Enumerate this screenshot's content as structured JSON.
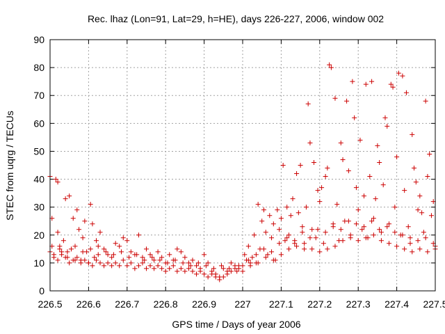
{
  "chart_data": {
    "type": "scatter",
    "title": "Rec. lhaz (Lon=91, Lat=29, h=HE), days 226-227, 2006, window 002",
    "xlabel": "GPS time / Days of year 2006",
    "ylabel": "STEC from uqrg / TECUs",
    "xlim": [
      226.5,
      227.5
    ],
    "ylim": [
      0,
      90
    ],
    "x_ticks": [
      "226.5",
      "226.6",
      "226.7",
      "226.8",
      "226.9",
      "227",
      "227.1",
      "227.2",
      "227.3",
      "227.4",
      "227.5"
    ],
    "y_ticks": [
      "0",
      "10",
      "20",
      "30",
      "40",
      "50",
      "60",
      "70",
      "80",
      "90"
    ],
    "grid": true,
    "marker": "plus",
    "color": "#cc0000",
    "series": [
      {
        "points": [
          [
            226.5,
            41
          ],
          [
            226.505,
            26
          ],
          [
            226.51,
            13
          ],
          [
            226.515,
            40
          ],
          [
            226.52,
            39
          ],
          [
            226.52,
            21
          ],
          [
            226.525,
            16
          ],
          [
            226.53,
            14
          ],
          [
            226.535,
            18
          ],
          [
            226.54,
            33
          ],
          [
            226.545,
            12
          ],
          [
            226.55,
            34
          ],
          [
            226.555,
            15
          ],
          [
            226.56,
            26
          ],
          [
            226.565,
            11
          ],
          [
            226.57,
            29
          ],
          [
            226.575,
            22
          ],
          [
            226.58,
            11
          ],
          [
            226.585,
            19
          ],
          [
            226.59,
            25
          ],
          [
            226.595,
            14
          ],
          [
            226.6,
            10
          ],
          [
            226.605,
            31
          ],
          [
            226.61,
            24
          ],
          [
            226.615,
            12
          ],
          [
            226.62,
            18
          ],
          [
            226.625,
            16
          ],
          [
            226.63,
            21
          ],
          [
            226.64,
            15
          ],
          [
            226.65,
            13
          ],
          [
            226.66,
            12
          ],
          [
            226.67,
            17
          ],
          [
            226.68,
            16
          ],
          [
            226.69,
            19
          ],
          [
            226.7,
            18
          ],
          [
            226.71,
            14
          ],
          [
            226.72,
            13
          ],
          [
            226.73,
            20
          ],
          [
            226.74,
            12
          ],
          [
            226.75,
            15
          ],
          [
            226.76,
            13
          ],
          [
            226.77,
            11
          ],
          [
            226.78,
            14
          ],
          [
            226.79,
            12
          ],
          [
            226.8,
            10
          ],
          [
            226.81,
            13
          ],
          [
            226.82,
            11
          ],
          [
            226.83,
            15
          ],
          [
            226.84,
            14
          ],
          [
            226.85,
            12
          ],
          [
            226.86,
            10
          ],
          [
            226.87,
            11
          ],
          [
            226.88,
            9
          ],
          [
            226.89,
            8
          ],
          [
            226.9,
            13
          ],
          [
            226.91,
            10
          ],
          [
            226.92,
            7
          ],
          [
            226.93,
            6
          ],
          [
            226.94,
            5
          ],
          [
            226.95,
            8
          ],
          [
            226.96,
            7
          ],
          [
            226.97,
            10
          ],
          [
            226.98,
            9
          ],
          [
            226.99,
            8
          ],
          [
            227.0,
            7
          ],
          [
            227.005,
            13
          ],
          [
            227.01,
            11
          ],
          [
            227.015,
            16
          ],
          [
            227.02,
            9
          ],
          [
            227.025,
            12
          ],
          [
            227.03,
            20
          ],
          [
            227.035,
            10
          ],
          [
            227.04,
            31
          ],
          [
            227.045,
            15
          ],
          [
            227.05,
            25
          ],
          [
            227.055,
            29
          ],
          [
            227.06,
            21
          ],
          [
            227.065,
            13
          ],
          [
            227.07,
            27
          ],
          [
            227.075,
            19
          ],
          [
            227.08,
            24
          ],
          [
            227.085,
            11
          ],
          [
            227.09,
            29
          ],
          [
            227.095,
            22
          ],
          [
            227.1,
            26
          ],
          [
            227.105,
            45
          ],
          [
            227.11,
            18
          ],
          [
            227.115,
            30
          ],
          [
            227.12,
            20
          ],
          [
            227.125,
            27
          ],
          [
            227.13,
            33
          ],
          [
            227.135,
            17
          ],
          [
            227.14,
            42
          ],
          [
            227.145,
            28
          ],
          [
            227.15,
            45
          ],
          [
            227.155,
            23
          ],
          [
            227.16,
            15
          ],
          [
            227.165,
            30
          ],
          [
            227.17,
            67
          ],
          [
            227.175,
            53
          ],
          [
            227.18,
            22
          ],
          [
            227.185,
            46
          ],
          [
            227.19,
            19
          ],
          [
            227.195,
            36
          ],
          [
            227.2,
            32
          ],
          [
            227.205,
            37
          ],
          [
            227.21,
            17
          ],
          [
            227.215,
            41
          ],
          [
            227.22,
            44
          ],
          [
            227.225,
            81
          ],
          [
            227.23,
            80
          ],
          [
            227.235,
            23
          ],
          [
            227.24,
            69
          ],
          [
            227.245,
            31
          ],
          [
            227.25,
            18
          ],
          [
            227.255,
            53
          ],
          [
            227.26,
            47
          ],
          [
            227.265,
            25
          ],
          [
            227.27,
            68
          ],
          [
            227.275,
            43
          ],
          [
            227.28,
            20
          ],
          [
            227.285,
            75
          ],
          [
            227.29,
            62
          ],
          [
            227.295,
            37
          ],
          [
            227.3,
            29
          ],
          [
            227.305,
            54
          ],
          [
            227.31,
            22
          ],
          [
            227.315,
            34
          ],
          [
            227.32,
            74
          ],
          [
            227.325,
            19
          ],
          [
            227.33,
            41
          ],
          [
            227.335,
            75
          ],
          [
            227.34,
            26
          ],
          [
            227.345,
            33
          ],
          [
            227.35,
            52
          ],
          [
            227.355,
            46
          ],
          [
            227.36,
            21
          ],
          [
            227.365,
            38
          ],
          [
            227.37,
            62
          ],
          [
            227.375,
            59
          ],
          [
            227.38,
            24
          ],
          [
            227.385,
            74
          ],
          [
            227.39,
            73
          ],
          [
            227.395,
            30
          ],
          [
            227.4,
            48
          ],
          [
            227.405,
            78
          ],
          [
            227.41,
            20
          ],
          [
            227.415,
            77
          ],
          [
            227.42,
            36
          ],
          [
            227.425,
            71
          ],
          [
            227.43,
            23
          ],
          [
            227.435,
            17
          ],
          [
            227.44,
            56
          ],
          [
            227.445,
            44
          ],
          [
            227.45,
            39
          ],
          [
            227.455,
            29
          ],
          [
            227.46,
            34
          ],
          [
            227.465,
            28
          ],
          [
            227.47,
            21
          ],
          [
            227.475,
            68
          ],
          [
            227.48,
            41
          ],
          [
            227.485,
            49
          ],
          [
            227.49,
            27
          ],
          [
            227.495,
            32
          ],
          [
            227.5,
            16
          ]
        ]
      },
      {
        "points": [
          [
            226.5,
            14
          ],
          [
            226.51,
            12
          ],
          [
            226.52,
            11
          ],
          [
            226.53,
            13
          ],
          [
            226.54,
            12
          ],
          [
            226.55,
            10
          ],
          [
            226.56,
            11
          ],
          [
            226.57,
            12
          ],
          [
            226.58,
            10
          ],
          [
            226.59,
            11
          ],
          [
            226.6,
            10
          ],
          [
            226.61,
            9
          ],
          [
            226.62,
            11
          ],
          [
            226.63,
            10
          ],
          [
            226.64,
            9
          ],
          [
            226.65,
            10
          ],
          [
            226.66,
            9
          ],
          [
            226.67,
            10
          ],
          [
            226.68,
            9
          ],
          [
            226.69,
            11
          ],
          [
            226.7,
            9
          ],
          [
            226.71,
            10
          ],
          [
            226.72,
            8
          ],
          [
            226.73,
            9
          ],
          [
            226.74,
            10
          ],
          [
            226.75,
            8
          ],
          [
            226.76,
            9
          ],
          [
            226.77,
            8
          ],
          [
            226.78,
            9
          ],
          [
            226.79,
            8
          ],
          [
            226.8,
            7
          ],
          [
            226.81,
            8
          ],
          [
            226.82,
            9
          ],
          [
            226.83,
            7
          ],
          [
            226.84,
            8
          ],
          [
            226.85,
            7
          ],
          [
            226.86,
            8
          ],
          [
            226.87,
            7
          ],
          [
            226.88,
            6
          ],
          [
            226.89,
            7
          ],
          [
            226.9,
            6
          ],
          [
            226.91,
            5
          ],
          [
            226.92,
            6
          ],
          [
            226.93,
            5
          ],
          [
            226.94,
            4
          ],
          [
            226.95,
            5
          ],
          [
            226.96,
            6
          ],
          [
            226.97,
            7
          ],
          [
            226.98,
            8
          ],
          [
            226.99,
            9
          ],
          [
            227.0,
            9
          ],
          [
            227.02,
            10
          ],
          [
            227.04,
            10
          ],
          [
            227.06,
            12
          ],
          [
            227.08,
            11
          ],
          [
            227.1,
            13
          ],
          [
            227.12,
            15
          ],
          [
            227.14,
            16
          ],
          [
            227.16,
            17
          ],
          [
            227.18,
            15
          ],
          [
            227.2,
            14
          ],
          [
            227.22,
            15
          ],
          [
            227.24,
            16
          ],
          [
            227.26,
            18
          ],
          [
            227.28,
            19
          ],
          [
            227.3,
            18
          ],
          [
            227.32,
            19
          ],
          [
            227.34,
            20
          ],
          [
            227.36,
            18
          ],
          [
            227.38,
            17
          ],
          [
            227.4,
            16
          ],
          [
            227.42,
            15
          ],
          [
            227.44,
            14
          ],
          [
            227.46,
            15
          ],
          [
            227.48,
            14
          ],
          [
            227.5,
            15
          ]
        ]
      },
      {
        "points": [
          [
            226.505,
            16
          ],
          [
            226.525,
            15
          ],
          [
            226.545,
            14
          ],
          [
            226.565,
            16
          ],
          [
            226.585,
            14
          ],
          [
            226.605,
            15
          ],
          [
            226.625,
            13
          ],
          [
            226.645,
            14
          ],
          [
            226.665,
            13
          ],
          [
            226.685,
            14
          ],
          [
            226.705,
            12
          ],
          [
            226.725,
            13
          ],
          [
            226.745,
            11
          ],
          [
            226.765,
            12
          ],
          [
            226.785,
            11
          ],
          [
            226.805,
            10
          ],
          [
            226.825,
            11
          ],
          [
            226.845,
            10
          ],
          [
            226.865,
            9
          ],
          [
            226.885,
            10
          ],
          [
            226.905,
            9
          ],
          [
            226.925,
            8
          ],
          [
            226.945,
            9
          ],
          [
            226.965,
            8
          ],
          [
            226.985,
            7
          ],
          [
            227.015,
            11
          ],
          [
            227.035,
            13
          ],
          [
            227.055,
            15
          ],
          [
            227.075,
            14
          ],
          [
            227.095,
            17
          ],
          [
            227.115,
            19
          ],
          [
            227.135,
            18
          ],
          [
            227.155,
            21
          ],
          [
            227.175,
            19
          ],
          [
            227.195,
            22
          ],
          [
            227.215,
            21
          ],
          [
            227.235,
            24
          ],
          [
            227.255,
            22
          ],
          [
            227.275,
            25
          ],
          [
            227.295,
            24
          ],
          [
            227.315,
            23
          ],
          [
            227.335,
            25
          ],
          [
            227.355,
            22
          ],
          [
            227.375,
            23
          ],
          [
            227.395,
            21
          ],
          [
            227.415,
            20
          ],
          [
            227.435,
            19
          ],
          [
            227.455,
            18
          ],
          [
            227.475,
            19
          ],
          [
            227.495,
            17
          ]
        ]
      }
    ]
  }
}
